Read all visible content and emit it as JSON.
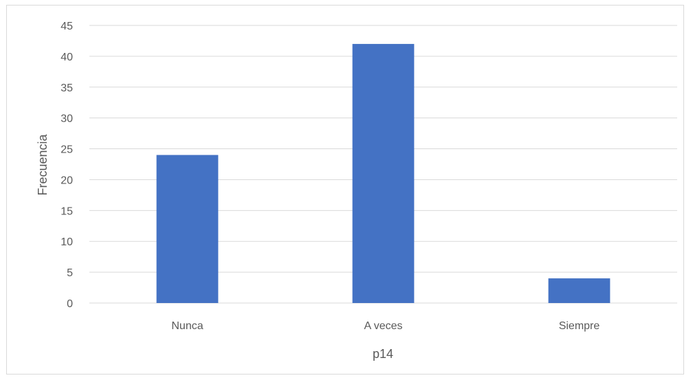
{
  "chart_data": {
    "type": "bar",
    "categories": [
      "Nunca",
      "A veces",
      "Siempre"
    ],
    "values": [
      24,
      42,
      4
    ],
    "xlabel": "p14",
    "ylabel": "Frecuencia",
    "ylim": [
      0,
      45
    ],
    "yticks": [
      0,
      5,
      10,
      15,
      20,
      25,
      30,
      35,
      40,
      45
    ],
    "grid": true,
    "legend": "none",
    "bar_color": "#4472C4",
    "grid_color": "#d9d9d9",
    "text_color": "#595959"
  }
}
